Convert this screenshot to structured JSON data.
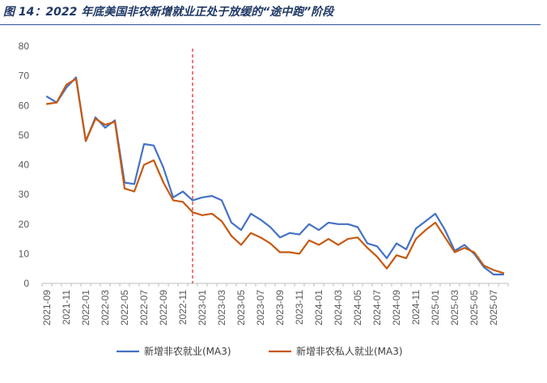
{
  "figure": {
    "title": "图 14：2022 年底美国非农新增就业正处于放缓的“途中跑”阶段"
  },
  "chart_data": {
    "type": "line",
    "title": "",
    "xlabel": "",
    "ylabel": "",
    "ylim": [
      0,
      80
    ],
    "yticks": [
      0,
      10,
      20,
      30,
      40,
      50,
      60,
      70,
      80
    ],
    "grid": false,
    "legend_position": "bottom",
    "x": [
      "2021-09",
      "2021-10",
      "2021-11",
      "2021-12",
      "2022-01",
      "2022-02",
      "2022-03",
      "2022-04",
      "2022-05",
      "2022-06",
      "2022-07",
      "2022-08",
      "2022-09",
      "2022-10",
      "2022-11",
      "2022-12",
      "2023-01",
      "2023-02",
      "2023-03",
      "2023-04",
      "2023-05",
      "2023-06",
      "2023-07",
      "2023-08",
      "2023-09",
      "2023-10",
      "2023-11",
      "2023-12",
      "2024-01",
      "2024-02",
      "2024-03",
      "2024-04",
      "2024-05",
      "2024-06",
      "2024-07",
      "2024-08",
      "2024-09",
      "2024-10",
      "2024-11",
      "2024-12",
      "2025-01",
      "2025-02",
      "2025-03",
      "2025-04",
      "2025-05",
      "2025-06",
      "2025-07",
      "2025-08"
    ],
    "xtick_labels": [
      "2021-09",
      "2021-11",
      "2022-01",
      "2022-03",
      "2022-05",
      "2022-07",
      "2022-09",
      "2022-11",
      "2023-01",
      "2023-03",
      "2023-05",
      "2023-07",
      "2023-09",
      "2023-11",
      "2024-01",
      "2024-03",
      "2024-05",
      "2024-07",
      "2024-09",
      "2024-11",
      "2025-01",
      "2025-03",
      "2025-05",
      "2025-07"
    ],
    "reference_line": {
      "x": "2022-12",
      "style": "dashed",
      "color": "#e02020"
    },
    "series": [
      {
        "name": "新增非农就业(MA3)",
        "color": "#4472c4",
        "values": [
          63,
          61,
          66,
          69.5,
          48,
          56,
          52.5,
          55,
          34,
          33.5,
          47,
          46.5,
          39,
          29,
          31,
          28,
          29,
          29.5,
          28,
          20.5,
          18,
          23.5,
          21.5,
          19,
          15.5,
          17,
          16.5,
          20,
          18,
          20.5,
          20,
          20,
          19,
          13.5,
          12.5,
          8.5,
          13.5,
          11.5,
          18.5,
          21,
          23.5,
          18,
          11,
          13,
          10,
          5.5,
          3,
          3
        ]
      },
      {
        "name": "新增非农私人就业(MA3)",
        "color": "#c55a11",
        "values": [
          60.5,
          61,
          67,
          69,
          48,
          55.5,
          53.5,
          54.5,
          32,
          31,
          40,
          41.5,
          34,
          28,
          27.5,
          24,
          23,
          23.5,
          21,
          16,
          13,
          17,
          15.5,
          13.5,
          10.5,
          10.5,
          10,
          14.5,
          13,
          15,
          13,
          15,
          15.5,
          12,
          9,
          5,
          9.5,
          8.5,
          15,
          18,
          20.5,
          15.5,
          10.5,
          12,
          10.5,
          6,
          4.5,
          3.5
        ]
      }
    ]
  }
}
